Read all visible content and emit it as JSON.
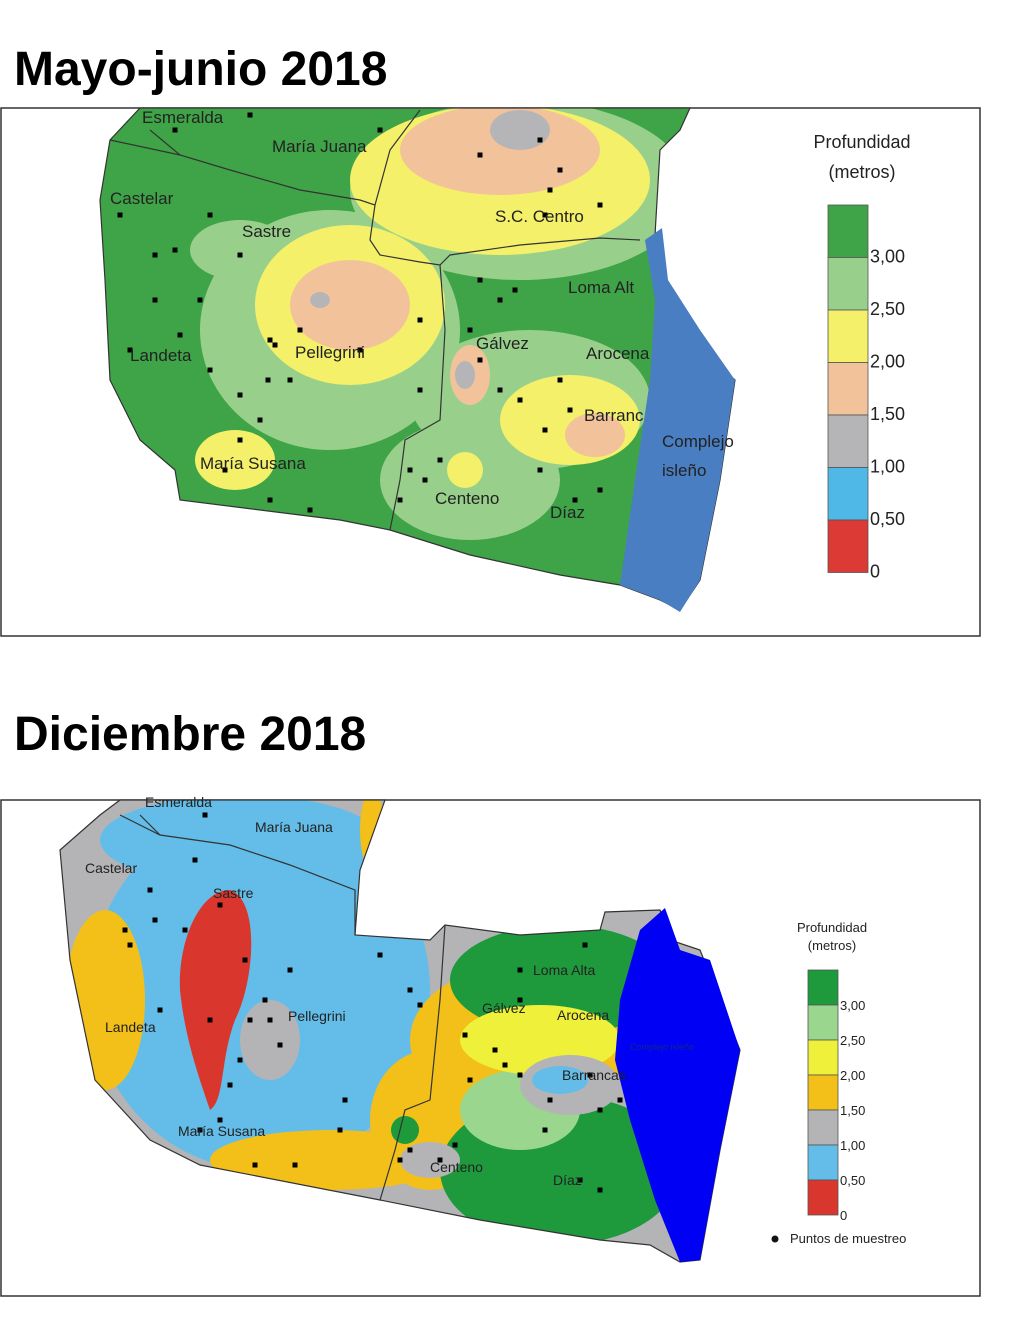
{
  "maps": [
    {
      "title": "Mayo-junio 2018",
      "places": [
        "Esmeralda",
        "María Juana",
        "Castelar",
        "Sastre",
        "S.C. Centro",
        "Loma Alt",
        "Landeta",
        "Pellegrini",
        "Gálvez",
        "Arocena",
        "Barranc",
        "María Susana",
        "Centeno",
        "Díaz"
      ],
      "island_label": [
        "Complejo",
        "isleño"
      ],
      "legend": {
        "title": "Profundidad",
        "unit": "(metros)",
        "labels": [
          "3,00",
          "2,50",
          "2,00",
          "1,50",
          "1,00",
          "0,50",
          "0"
        ],
        "colors": [
          "#3fa447",
          "#98d08b",
          "#f4f06a",
          "#f2c39a",
          "#b5b5b8",
          "#4fb8e6",
          "#db3a35"
        ]
      }
    },
    {
      "title": "Diciembre 2018",
      "places": [
        "Esmeralda",
        "María Juana",
        "Castelar",
        "Sastre",
        "Landeta",
        "Pellegrini",
        "Loma Alta",
        "Gálvez",
        "Arocena",
        "Barrancas",
        "María Susana",
        "Centeno",
        "Díaz"
      ],
      "island_label": [
        "Complejo isleño"
      ],
      "legend": {
        "title": "Profundidad",
        "unit": "(metros)",
        "labels": [
          "3,00",
          "2,50",
          "2,00",
          "1,50",
          "1,00",
          "0,50",
          "0"
        ],
        "colors": [
          "#1e9a3c",
          "#9ad68e",
          "#eef03a",
          "#f2c018",
          "#b4b4b6",
          "#63bde8",
          "#d9372e"
        ],
        "points_label": "Puntos de muestreo"
      }
    }
  ]
}
